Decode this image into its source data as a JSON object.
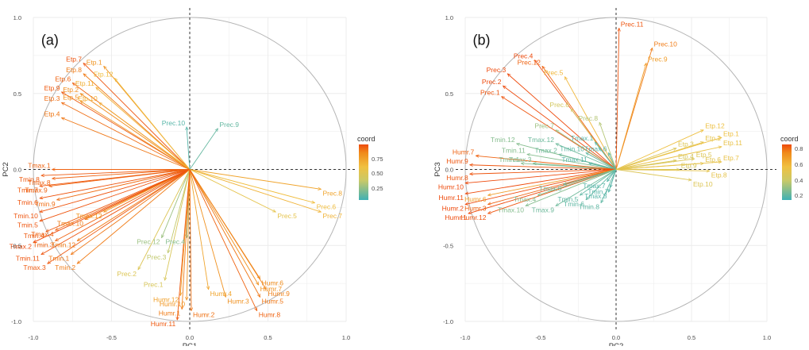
{
  "chart_data": [
    {
      "type": "scatter",
      "panel_label": "(a)",
      "xlabel": "PC1",
      "ylabel": "PC2",
      "xlim": [
        -1.0,
        1.0
      ],
      "ylim": [
        -1.0,
        1.0
      ],
      "xticks": [
        "-1.0",
        "-0.5",
        "0.0",
        "0.5",
        "1.0"
      ],
      "yticks": [
        "-1.0",
        "-0.5",
        "0.0",
        "0.5",
        "1.0"
      ],
      "grid": true,
      "unit_circle": true,
      "legend_title": "coord",
      "legend_ticks": [
        "0.75",
        "0.50",
        "0.25"
      ],
      "colorscale_range": [
        0.1,
        0.95
      ],
      "vectors": [
        {
          "label": "Etp.7",
          "x": -0.68,
          "y": 0.7,
          "coord": 0.93
        },
        {
          "label": "Etp.1",
          "x": -0.55,
          "y": 0.68,
          "coord": 0.78
        },
        {
          "label": "Etp.12",
          "x": -0.48,
          "y": 0.6,
          "coord": 0.62
        },
        {
          "label": "Etp.8",
          "x": -0.68,
          "y": 0.63,
          "coord": 0.85
        },
        {
          "label": "Etp.6",
          "x": -0.75,
          "y": 0.57,
          "coord": 0.9
        },
        {
          "label": "Etp.11",
          "x": -0.6,
          "y": 0.54,
          "coord": 0.68
        },
        {
          "label": "Etp.9",
          "x": -0.82,
          "y": 0.51,
          "coord": 0.92
        },
        {
          "label": "Etp.2",
          "x": -0.7,
          "y": 0.5,
          "coord": 0.82
        },
        {
          "label": "Etp.3",
          "x": -0.82,
          "y": 0.44,
          "coord": 0.88
        },
        {
          "label": "Etp.5",
          "x": -0.7,
          "y": 0.45,
          "coord": 0.8
        },
        {
          "label": "Etp.10",
          "x": -0.58,
          "y": 0.44,
          "coord": 0.7
        },
        {
          "label": "Etp.4",
          "x": -0.82,
          "y": 0.34,
          "coord": 0.86
        },
        {
          "label": "Prec.10",
          "x": -0.02,
          "y": 0.28,
          "coord": 0.15
        },
        {
          "label": "Prec.9",
          "x": 0.18,
          "y": 0.27,
          "coord": 0.18
        },
        {
          "label": "Prec.8",
          "x": 0.84,
          "y": -0.13,
          "coord": 0.72
        },
        {
          "label": "Prec.6",
          "x": 0.8,
          "y": -0.22,
          "coord": 0.62
        },
        {
          "label": "Prec.7",
          "x": 0.84,
          "y": -0.28,
          "coord": 0.66
        },
        {
          "label": "Prec.5",
          "x": 0.55,
          "y": -0.28,
          "coord": 0.55
        },
        {
          "label": "Prec.12",
          "x": -0.18,
          "y": -0.45,
          "coord": 0.3
        },
        {
          "label": "Prec.4",
          "x": -0.02,
          "y": -0.45,
          "coord": 0.25
        },
        {
          "label": "Prec.3",
          "x": -0.14,
          "y": -0.55,
          "coord": 0.38
        },
        {
          "label": "Prec.2",
          "x": -0.33,
          "y": -0.66,
          "coord": 0.5
        },
        {
          "label": "Prec.1",
          "x": -0.16,
          "y": -0.73,
          "coord": 0.48
        },
        {
          "label": "Tmax.1",
          "x": -0.88,
          "y": 0.0,
          "coord": 0.9
        },
        {
          "label": "Tmin.8",
          "x": -0.95,
          "y": -0.04,
          "coord": 0.92
        },
        {
          "label": "Tmax.8",
          "x": -0.88,
          "y": -0.06,
          "coord": 0.9
        },
        {
          "label": "Tmin.7",
          "x": -0.96,
          "y": -0.11,
          "coord": 0.92
        },
        {
          "label": "Tmax.9",
          "x": -0.9,
          "y": -0.11,
          "coord": 0.9
        },
        {
          "label": "Tmin.6",
          "x": -0.96,
          "y": -0.19,
          "coord": 0.93
        },
        {
          "label": "Tmin.9",
          "x": -0.85,
          "y": -0.2,
          "coord": 0.88
        },
        {
          "label": "Tmin.10",
          "x": -0.96,
          "y": -0.28,
          "coord": 0.93
        },
        {
          "label": "Tmax.10",
          "x": -0.67,
          "y": -0.33,
          "coord": 0.85
        },
        {
          "label": "Tmax.12",
          "x": -0.55,
          "y": -0.28,
          "coord": 0.78
        },
        {
          "label": "Tmin.5",
          "x": -0.96,
          "y": -0.34,
          "coord": 0.93
        },
        {
          "label": "Tmin.4",
          "x": -0.92,
          "y": -0.41,
          "coord": 0.92
        },
        {
          "label": "Tmax.4",
          "x": -0.86,
          "y": -0.4,
          "coord": 0.9
        },
        {
          "label": "Tmax.2",
          "x": -1.0,
          "y": -0.48,
          "coord": 0.95
        },
        {
          "label": "Tmin.3",
          "x": -0.86,
          "y": -0.47,
          "coord": 0.9
        },
        {
          "label": "Tmin.12",
          "x": -0.72,
          "y": -0.47,
          "coord": 0.85
        },
        {
          "label": "Tmin.11",
          "x": -0.95,
          "y": -0.56,
          "coord": 0.93
        },
        {
          "label": "Tmin.1",
          "x": -0.76,
          "y": -0.56,
          "coord": 0.86
        },
        {
          "label": "Tmax.3",
          "x": -0.91,
          "y": -0.62,
          "coord": 0.92
        },
        {
          "label": "Tmin.2",
          "x": -0.72,
          "y": -0.62,
          "coord": 0.85
        },
        {
          "label": "Humr.6",
          "x": 0.45,
          "y": -0.72,
          "coord": 0.82
        },
        {
          "label": "Humr.7",
          "x": 0.44,
          "y": -0.76,
          "coord": 0.8
        },
        {
          "label": "Humr.9",
          "x": 0.49,
          "y": -0.79,
          "coord": 0.84
        },
        {
          "label": "Humr.4",
          "x": 0.12,
          "y": -0.79,
          "coord": 0.72
        },
        {
          "label": "Humr.3",
          "x": 0.23,
          "y": -0.84,
          "coord": 0.8
        },
        {
          "label": "Humr.5",
          "x": 0.45,
          "y": -0.84,
          "coord": 0.86
        },
        {
          "label": "Humr.12",
          "x": -0.06,
          "y": -0.83,
          "coord": 0.74
        },
        {
          "label": "Humr.10",
          "x": -0.02,
          "y": -0.86,
          "coord": 0.78
        },
        {
          "label": "Humr.1",
          "x": -0.05,
          "y": -0.92,
          "coord": 0.85
        },
        {
          "label": "Humr.2",
          "x": 0.01,
          "y": -0.93,
          "coord": 0.87
        },
        {
          "label": "Humr.8",
          "x": 0.43,
          "y": -0.93,
          "coord": 0.9
        },
        {
          "label": "Humr.11",
          "x": -0.08,
          "y": -0.99,
          "coord": 0.92
        }
      ]
    },
    {
      "type": "scatter",
      "panel_label": "(b)",
      "xlabel": "PC2",
      "ylabel": "PC3",
      "xlim": [
        -1.0,
        1.0
      ],
      "ylim": [
        -1.0,
        1.0
      ],
      "xticks": [
        "-1.0",
        "-0.5",
        "0.0",
        "0.5",
        "1.0"
      ],
      "yticks": [
        "-1.0",
        "-0.5",
        "0.0",
        "0.5",
        "1.0"
      ],
      "grid": true,
      "unit_circle": true,
      "legend_title": "coord",
      "legend_ticks": [
        "0.8",
        "0.6",
        "0.4",
        "0.2"
      ],
      "colorscale_range": [
        0.05,
        0.9
      ],
      "vectors": [
        {
          "label": "Prec.11",
          "x": 0.02,
          "y": 0.93,
          "coord": 0.88
        },
        {
          "label": "Prec.10",
          "x": 0.24,
          "y": 0.8,
          "coord": 0.8
        },
        {
          "label": "Prec.9",
          "x": 0.2,
          "y": 0.7,
          "coord": 0.7
        },
        {
          "label": "Prec.4",
          "x": -0.54,
          "y": 0.72,
          "coord": 0.9
        },
        {
          "label": "Prec.12",
          "x": -0.49,
          "y": 0.68,
          "coord": 0.85
        },
        {
          "label": "Prec.3",
          "x": -0.72,
          "y": 0.63,
          "coord": 0.92
        },
        {
          "label": "Prec.5",
          "x": -0.34,
          "y": 0.61,
          "coord": 0.6
        },
        {
          "label": "Prec.2",
          "x": -0.75,
          "y": 0.55,
          "coord": 0.9
        },
        {
          "label": "Prec.1",
          "x": -0.76,
          "y": 0.48,
          "coord": 0.88
        },
        {
          "label": "Prec.6",
          "x": -0.3,
          "y": 0.4,
          "coord": 0.4
        },
        {
          "label": "Prec.8",
          "x": -0.11,
          "y": 0.31,
          "coord": 0.3
        },
        {
          "label": "Prec.7",
          "x": -0.4,
          "y": 0.26,
          "coord": 0.25
        },
        {
          "label": "Tmin.12",
          "x": -0.66,
          "y": 0.17,
          "coord": 0.2
        },
        {
          "label": "Tmax.12",
          "x": -0.4,
          "y": 0.17,
          "coord": 0.15
        },
        {
          "label": "Tmax.1",
          "x": -0.14,
          "y": 0.18,
          "coord": 0.1
        },
        {
          "label": "Tmin.11",
          "x": -0.59,
          "y": 0.1,
          "coord": 0.2
        },
        {
          "label": "Tmax.2",
          "x": -0.38,
          "y": 0.1,
          "coord": 0.15
        },
        {
          "label": "Tmin.10",
          "x": -0.2,
          "y": 0.11,
          "coord": 0.12
        },
        {
          "label": "Tmax.6",
          "x": -0.05,
          "y": 0.11,
          "coord": 0.1
        },
        {
          "label": "Tmin.1",
          "x": -0.63,
          "y": 0.04,
          "coord": 0.2
        },
        {
          "label": "Tmax.3",
          "x": -0.55,
          "y": 0.04,
          "coord": 0.18
        },
        {
          "label": "Tmax.11",
          "x": -0.18,
          "y": 0.04,
          "coord": 0.1
        },
        {
          "label": "Humr.7",
          "x": -0.93,
          "y": 0.09,
          "coord": 0.85
        },
        {
          "label": "Humr.9",
          "x": -0.97,
          "y": 0.03,
          "coord": 0.88
        },
        {
          "label": "Humr.8",
          "x": -0.97,
          "y": -0.03,
          "coord": 0.88
        },
        {
          "label": "Humr.10",
          "x": -1.0,
          "y": -0.09,
          "coord": 0.92
        },
        {
          "label": "Humr.11",
          "x": -1.0,
          "y": -0.16,
          "coord": 0.92
        },
        {
          "label": "Humr.2",
          "x": -1.0,
          "y": -0.23,
          "coord": 0.93
        },
        {
          "label": "Humr.1",
          "x": -0.98,
          "y": -0.29,
          "coord": 0.93
        },
        {
          "label": "Humr.12",
          "x": -0.85,
          "y": -0.29,
          "coord": 0.88
        },
        {
          "label": "Humr.3",
          "x": -0.85,
          "y": -0.23,
          "coord": 0.85
        },
        {
          "label": "Humr.6",
          "x": -0.85,
          "y": -0.17,
          "coord": 0.7
        },
        {
          "label": "Tmax.4",
          "x": -0.52,
          "y": -0.17,
          "coord": 0.2
        },
        {
          "label": "Tmin.5",
          "x": -0.24,
          "y": -0.17,
          "coord": 0.12
        },
        {
          "label": "Tmax.10",
          "x": -0.6,
          "y": -0.24,
          "coord": 0.2
        },
        {
          "label": "Tmax.9",
          "x": -0.4,
          "y": -0.24,
          "coord": 0.15
        },
        {
          "label": "Tmax.5",
          "x": -0.35,
          "y": -0.1,
          "coord": 0.15
        },
        {
          "label": "Tmin.7",
          "x": -0.04,
          "y": -0.12,
          "coord": 0.1
        },
        {
          "label": "Tmax.7",
          "x": -0.06,
          "y": -0.08,
          "coord": 0.1
        },
        {
          "label": "Tmax.8",
          "x": -0.05,
          "y": -0.15,
          "coord": 0.1
        },
        {
          "label": "Tmin.6",
          "x": -0.2,
          "y": -0.2,
          "coord": 0.12
        },
        {
          "label": "Tmin.8",
          "x": -0.1,
          "y": -0.22,
          "coord": 0.12
        },
        {
          "label": "Etp.12",
          "x": 0.58,
          "y": 0.26,
          "coord": 0.55
        },
        {
          "label": "Etp.1",
          "x": 0.7,
          "y": 0.21,
          "coord": 0.55
        },
        {
          "label": "Etp.2",
          "x": 0.58,
          "y": 0.18,
          "coord": 0.5
        },
        {
          "label": "Etp.11",
          "x": 0.7,
          "y": 0.15,
          "coord": 0.52
        },
        {
          "label": "Etp.3",
          "x": 0.4,
          "y": 0.14,
          "coord": 0.45
        },
        {
          "label": "Etp.4",
          "x": 0.4,
          "y": 0.06,
          "coord": 0.42
        },
        {
          "label": "Etp.5",
          "x": 0.52,
          "y": 0.07,
          "coord": 0.45
        },
        {
          "label": "Etp.6",
          "x": 0.58,
          "y": 0.04,
          "coord": 0.48
        },
        {
          "label": "Etp.7",
          "x": 0.7,
          "y": 0.05,
          "coord": 0.52
        },
        {
          "label": "Etp.9",
          "x": 0.42,
          "y": 0.0,
          "coord": 0.42
        },
        {
          "label": "Etp.8",
          "x": 0.62,
          "y": -0.01,
          "coord": 0.5
        },
        {
          "label": "Etp.10",
          "x": 0.5,
          "y": -0.07,
          "coord": 0.45
        }
      ]
    }
  ]
}
